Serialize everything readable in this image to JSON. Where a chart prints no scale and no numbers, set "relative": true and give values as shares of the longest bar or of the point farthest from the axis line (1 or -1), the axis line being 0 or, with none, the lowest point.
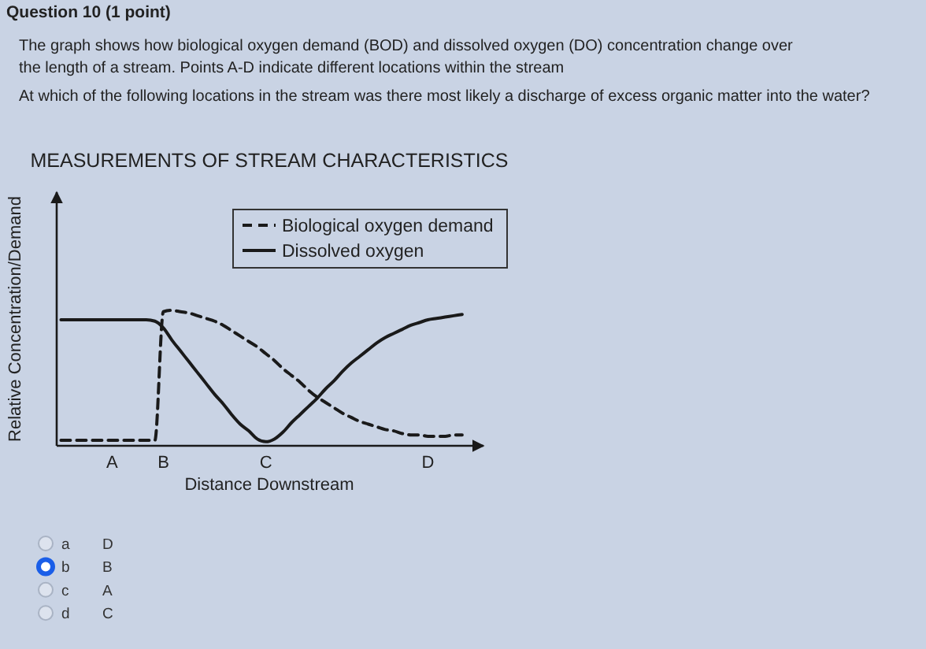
{
  "chart_data": {
    "type": "line",
    "title": "MEASUREMENTS OF STREAM CHARACTERISTICS",
    "xlabel": "Distance Downstream",
    "ylabel": "Relative Concentration/Demand",
    "relative": true,
    "legend": "top right",
    "categories": [
      null,
      null,
      null,
      null,
      null,
      null,
      "A",
      null,
      null,
      null,
      null,
      null,
      "B",
      null,
      null,
      null,
      null,
      null,
      null,
      null,
      null,
      null,
      null,
      null,
      "C",
      null,
      null,
      null,
      null,
      null,
      null,
      null,
      null,
      null,
      null,
      null,
      null,
      null,
      null,
      null,
      null,
      null,
      null,
      "D",
      null,
      null,
      null,
      null
    ],
    "annotations": [
      "Question 10 (1 point)",
      "The graph shows how biological oxygen demand (BOD) and dissolved oxygen (DO) concentration change over the length of a stream. Points A-D indicate different locations within the stream",
      "At which of the following locations in the stream was there most likely a discharge of excess organic matter into the water?",
      "a",
      "D",
      "b",
      "B",
      "c",
      "A",
      "d",
      "C"
    ],
    "series": [
      {
        "name": "Biological oxygen demand",
        "color": "#1a1a1a",
        "line_style": "dashed",
        "values": [
          0.04,
          0.04,
          0.04,
          0.04,
          0.04,
          0.04,
          0.04,
          0.04,
          0.04,
          0.04,
          0.04,
          0.04,
          0.99,
          1.0,
          0.99,
          0.98,
          0.96,
          0.94,
          0.92,
          0.89,
          0.85,
          0.81,
          0.77,
          0.73,
          0.68,
          0.63,
          0.57,
          0.52,
          0.47,
          0.41,
          0.36,
          0.32,
          0.28,
          0.24,
          0.21,
          0.18,
          0.16,
          0.14,
          0.12,
          0.11,
          0.09,
          0.08,
          0.08,
          0.07,
          0.07,
          0.07,
          0.08,
          0.08
        ]
      },
      {
        "name": "Dissolved oxygen",
        "color": "#1a1a1a",
        "line_style": "solid",
        "values": [
          0.93,
          0.93,
          0.93,
          0.93,
          0.93,
          0.93,
          0.93,
          0.93,
          0.93,
          0.93,
          0.93,
          0.92,
          0.87,
          0.78,
          0.7,
          0.62,
          0.54,
          0.46,
          0.38,
          0.31,
          0.23,
          0.16,
          0.11,
          0.05,
          0.03,
          0.05,
          0.1,
          0.17,
          0.23,
          0.29,
          0.35,
          0.42,
          0.48,
          0.55,
          0.61,
          0.66,
          0.71,
          0.76,
          0.8,
          0.83,
          0.86,
          0.89,
          0.91,
          0.93,
          0.94,
          0.95,
          0.96,
          0.97
        ]
      }
    ]
  }
}
